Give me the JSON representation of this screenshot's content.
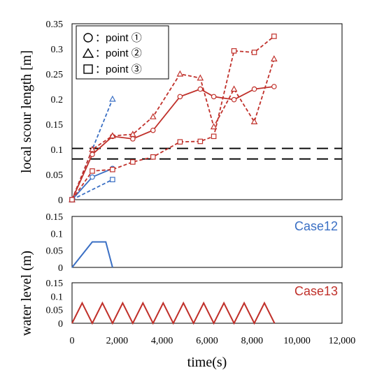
{
  "chart_data": [
    {
      "type": "line",
      "ylabel": "local scour length [m]",
      "ylim": [
        0,
        0.35
      ],
      "yticks": [
        "0",
        "0.05",
        "0.1",
        "0.15",
        "0.2",
        "0.25",
        "0.3",
        "0.35"
      ],
      "xlim": [
        0,
        12000
      ],
      "legend": {
        "placement": "top-left",
        "entries": [
          {
            "symbol": "circle",
            "label": "：point ①"
          },
          {
            "symbol": "triangle",
            "label": "：point ②"
          },
          {
            "symbol": "square",
            "label": "：point ③"
          }
        ]
      },
      "reference_lines": [
        0.102,
        0.081
      ],
      "series": [
        {
          "case": "Case12",
          "point": "circle",
          "color": "#3a6fc4",
          "dash": "solid",
          "x": [
            0,
            900,
            1800
          ],
          "y": [
            0,
            0.045,
            0.062
          ]
        },
        {
          "case": "Case12",
          "point": "triangle",
          "color": "#3a6fc4",
          "dash": "dashed",
          "x": [
            0,
            1800
          ],
          "y": [
            0,
            0.2
          ]
        },
        {
          "case": "Case12",
          "point": "square",
          "color": "#3a6fc4",
          "dash": "dashed",
          "x": [
            0,
            1800
          ],
          "y": [
            0,
            0.04
          ]
        },
        {
          "case": "Case13",
          "point": "circle",
          "color": "#c0302a",
          "dash": "solid",
          "x": [
            0,
            900,
            1800,
            2700,
            3600,
            4800,
            5700,
            6300,
            7200,
            8100,
            8980
          ],
          "y": [
            0,
            0.09,
            0.126,
            0.121,
            0.138,
            0.205,
            0.22,
            0.205,
            0.199,
            0.22,
            0.225
          ]
        },
        {
          "case": "Case13",
          "point": "triangle",
          "color": "#c0302a",
          "dash": "dashed",
          "x": [
            0,
            900,
            1800,
            2700,
            3600,
            4800,
            5700,
            6300,
            7200,
            8100,
            8980
          ],
          "y": [
            0,
            0.1,
            0.127,
            0.13,
            0.165,
            0.25,
            0.242,
            0.145,
            0.22,
            0.155,
            0.28
          ]
        },
        {
          "case": "Case13",
          "point": "square",
          "color": "#c0302a",
          "dash": "dashed",
          "x": [
            0,
            900,
            1800,
            2700,
            3600,
            4800,
            5700,
            6300,
            7200,
            8100,
            8980
          ],
          "y": [
            0,
            0.057,
            0.06,
            0.075,
            0.085,
            0.115,
            0.116,
            0.126,
            0.296,
            0.293,
            0.325
          ]
        }
      ]
    },
    {
      "type": "line",
      "label": "Case12",
      "color": "#3a6fc4",
      "ylim": [
        0,
        0.15
      ],
      "yticks": [
        "0",
        "0.05",
        "0.1",
        "0.15"
      ],
      "xlim": [
        0,
        12000
      ],
      "x": [
        0,
        900,
        1500,
        1800
      ],
      "y": [
        0,
        0.075,
        0.075,
        0
      ]
    },
    {
      "type": "line",
      "label": "Case13",
      "color": "#c0302a",
      "ylim": [
        0,
        0.15
      ],
      "yticks": [
        "0",
        "0.05",
        "0.1",
        "0.15"
      ],
      "xlim": [
        0,
        12000
      ],
      "cycle": {
        "period": 900,
        "peak": 0.075,
        "count": 10
      }
    }
  ],
  "shared_axes": {
    "xlabel": "time(s)",
    "xticks": [
      "0",
      "2,000",
      "4,000",
      "6,000",
      "8,000",
      "10,000",
      "12,000"
    ],
    "xtick_values": [
      0,
      2000,
      4000,
      6000,
      8000,
      10000,
      12000
    ],
    "lower_ylabel": "water level (m)"
  }
}
